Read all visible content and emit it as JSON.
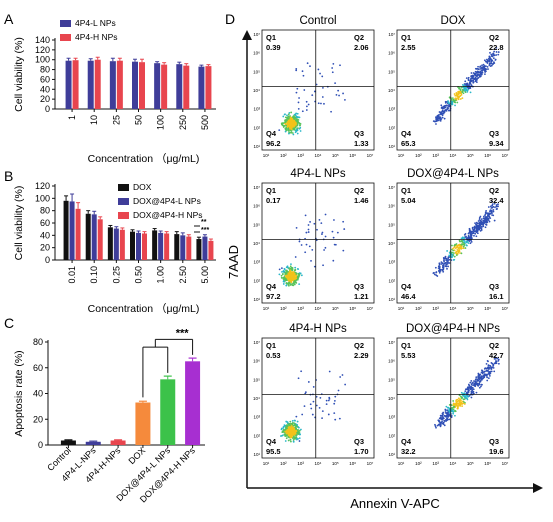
{
  "colors": {
    "blue": "#3f3d99",
    "red": "#e8454e",
    "black": "#111111",
    "orange": "#f58a3c",
    "green": "#3cc24a",
    "purple": "#a72fd1"
  },
  "panel_labels": {
    "a": "A",
    "b": "B",
    "c": "C",
    "d": "D"
  },
  "chart_data": [
    {
      "panel": "A",
      "type": "bar",
      "ylabel": "Cell viability (%)",
      "xlabel": "Concentration （μg/mL)",
      "categories": [
        "1",
        "10",
        "25",
        "50",
        "100",
        "250",
        "500"
      ],
      "ylim": [
        0,
        140
      ],
      "yticks": [
        "0",
        "20",
        "40",
        "60",
        "80",
        "100",
        "120",
        "140"
      ],
      "series": [
        {
          "name": "4P4-L NPs",
          "color": "#3f3d99",
          "values": [
            98,
            98,
            97,
            96,
            93,
            91,
            86
          ],
          "errors": [
            5,
            4,
            6,
            5,
            3,
            4,
            3
          ]
        },
        {
          "name": "4P4-H NPs",
          "color": "#e8454e",
          "values": [
            99,
            100,
            98,
            95,
            90,
            88,
            87
          ],
          "errors": [
            4,
            5,
            5,
            6,
            4,
            4,
            3
          ]
        }
      ]
    },
    {
      "panel": "B",
      "type": "bar",
      "ylabel": "Cell viability (%)",
      "xlabel": "Concentration （μg/mL)",
      "categories": [
        "0.01",
        "0.10",
        "0.25",
        "0.50",
        "1.00",
        "2.50",
        "5.00"
      ],
      "ylim": [
        0,
        120
      ],
      "yticks": [
        "0",
        "20",
        "40",
        "60",
        "80",
        "100",
        "120"
      ],
      "series": [
        {
          "name": "DOX",
          "color": "#111111",
          "values": [
            96,
            75,
            53,
            46,
            48,
            42,
            34
          ],
          "errors": [
            8,
            5,
            3,
            3,
            3,
            4,
            3
          ]
        },
        {
          "name": "DOX@4P4-L NPs",
          "color": "#3f3d99",
          "values": [
            95,
            74,
            51,
            44,
            44,
            40,
            38
          ],
          "errors": [
            12,
            5,
            3,
            3,
            3,
            4,
            3
          ]
        },
        {
          "name": "DOX@4P4-H NPs",
          "color": "#e8454e",
          "values": [
            83,
            66,
            49,
            43,
            43,
            38,
            31
          ],
          "errors": [
            10,
            4,
            3,
            3,
            3,
            3,
            3
          ]
        }
      ],
      "significance": [
        "**",
        "***"
      ]
    },
    {
      "panel": "C",
      "type": "bar",
      "ylabel": "Apoptosis rate (%)",
      "categories": [
        "Control",
        "4P4-L-NPs",
        "4P4-H-NPs",
        "DOX",
        "DOX@4P4-L NPs",
        "DOX@4P4-H NPs"
      ],
      "ylim": [
        0,
        80
      ],
      "yticks": [
        "0",
        "20",
        "40",
        "60",
        "80"
      ],
      "values": [
        3.5,
        2.5,
        3.5,
        33,
        51,
        65
      ],
      "errors": [
        0.5,
        0.5,
        0.5,
        1,
        2.5,
        2.5
      ],
      "colors": [
        "#111111",
        "#3f3d99",
        "#e8454e",
        "#f58a3c",
        "#3cc24a",
        "#a72fd1"
      ],
      "significance": "***"
    },
    {
      "panel": "D",
      "type": "scatter",
      "ylabel": "7AAD",
      "xlabel": "Annexin V-APC",
      "tick_labels": [
        "10¹",
        "10²",
        "10³",
        "10⁴",
        "10⁵",
        "10⁶",
        "10⁷"
      ],
      "quadrant_labels": [
        "Q1",
        "Q2",
        "Q3",
        "Q4"
      ],
      "plots": [
        {
          "title": "Control",
          "q1": "0.39",
          "q2": "2.06",
          "q3": "1.33",
          "q4": "96.2"
        },
        {
          "title": "DOX",
          "q1": "2.55",
          "q2": "22.8",
          "q3": "9.34",
          "q4": "65.3"
        },
        {
          "title": "4P4-L NPs",
          "q1": "0.17",
          "q2": "1.46",
          "q3": "1.21",
          "q4": "97.2"
        },
        {
          "title": "DOX@4P4-L NPs",
          "q1": "5.04",
          "q2": "32.4",
          "q3": "16.1",
          "q4": "46.4"
        },
        {
          "title": "4P4-H NPs",
          "q1": "0.53",
          "q2": "2.29",
          "q3": "1.70",
          "q4": "95.5"
        },
        {
          "title": "DOX@4P4-H NPs",
          "q1": "5.53",
          "q2": "42.7",
          "q3": "19.6",
          "q4": "32.2"
        }
      ]
    }
  ]
}
